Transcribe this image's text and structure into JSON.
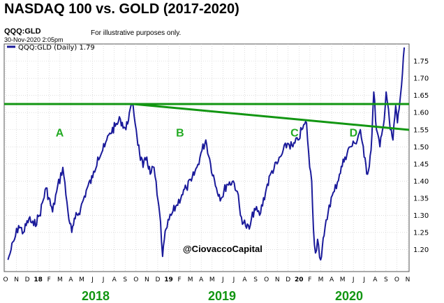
{
  "title": "NASDAQ 100 vs. GOLD (2017-2020)",
  "header": {
    "symbol": "QQQ:GLD",
    "datetime": "30-Nov-2020 2:05pm",
    "disclaimer": "For illustrative purposes only.",
    "legend": "QQQ:GLD (Daily) 1.79"
  },
  "watermark": "@CiovaccoCapital",
  "colors": {
    "series": "#1a1a9a",
    "lines": "#129612",
    "labels": "#22aa22",
    "years": "#129612"
  },
  "chart_data": {
    "type": "line",
    "xlabel": "",
    "ylabel": "",
    "ylim": [
      1.15,
      1.79
    ],
    "x_ticks": [
      "O",
      "N",
      "D",
      "18",
      "F",
      "M",
      "A",
      "M",
      "J",
      "J",
      "A",
      "S",
      "O",
      "N",
      "D",
      "19",
      "F",
      "M",
      "A",
      "M",
      "J",
      "J",
      "A",
      "S",
      "O",
      "N",
      "D",
      "20",
      "F",
      "M",
      "A",
      "M",
      "J",
      "J",
      "A",
      "S",
      "O",
      "N"
    ],
    "y_ticks": [
      "1.75",
      "1.70",
      "1.65",
      "1.60",
      "1.55",
      "1.50",
      "1.45",
      "1.40",
      "1.35",
      "1.30",
      "1.25",
      "1.20"
    ],
    "year_labels": [
      "2018",
      "2019",
      "2020"
    ],
    "series": [
      {
        "values": [
          {
            "x": "2017-10-01",
            "y": 1.17
          },
          {
            "x": "2017-10-10",
            "y": 1.2
          },
          {
            "x": "2017-10-20",
            "y": 1.23
          },
          {
            "x": "2017-11-01",
            "y": 1.27
          },
          {
            "x": "2017-11-15",
            "y": 1.25
          },
          {
            "x": "2017-12-01",
            "y": 1.29
          },
          {
            "x": "2017-12-15",
            "y": 1.27
          },
          {
            "x": "2018-01-01",
            "y": 1.3
          },
          {
            "x": "2018-01-20",
            "y": 1.38
          },
          {
            "x": "2018-02-08",
            "y": 1.31
          },
          {
            "x": "2018-02-20",
            "y": 1.37
          },
          {
            "x": "2018-03-10",
            "y": 1.44
          },
          {
            "x": "2018-03-25",
            "y": 1.31
          },
          {
            "x": "2018-04-05",
            "y": 1.25
          },
          {
            "x": "2018-04-15",
            "y": 1.29
          },
          {
            "x": "2018-05-01",
            "y": 1.32
          },
          {
            "x": "2018-05-20",
            "y": 1.38
          },
          {
            "x": "2018-06-05",
            "y": 1.41
          },
          {
            "x": "2018-06-20",
            "y": 1.47
          },
          {
            "x": "2018-07-10",
            "y": 1.5
          },
          {
            "x": "2018-07-25",
            "y": 1.54
          },
          {
            "x": "2018-08-10",
            "y": 1.56
          },
          {
            "x": "2018-08-25",
            "y": 1.58
          },
          {
            "x": "2018-09-10",
            "y": 1.55
          },
          {
            "x": "2018-09-20",
            "y": 1.6
          },
          {
            "x": "2018-10-01",
            "y": 1.62
          },
          {
            "x": "2018-10-10",
            "y": 1.55
          },
          {
            "x": "2018-10-20",
            "y": 1.48
          },
          {
            "x": "2018-10-30",
            "y": 1.44
          },
          {
            "x": "2018-11-10",
            "y": 1.47
          },
          {
            "x": "2018-11-20",
            "y": 1.42
          },
          {
            "x": "2018-12-01",
            "y": 1.44
          },
          {
            "x": "2018-12-10",
            "y": 1.36
          },
          {
            "x": "2018-12-20",
            "y": 1.28
          },
          {
            "x": "2018-12-26",
            "y": 1.18
          },
          {
            "x": "2019-01-05",
            "y": 1.26
          },
          {
            "x": "2019-01-20",
            "y": 1.3
          },
          {
            "x": "2019-02-05",
            "y": 1.33
          },
          {
            "x": "2019-02-20",
            "y": 1.36
          },
          {
            "x": "2019-03-05",
            "y": 1.38
          },
          {
            "x": "2019-03-20",
            "y": 1.4
          },
          {
            "x": "2019-04-05",
            "y": 1.44
          },
          {
            "x": "2019-04-20",
            "y": 1.49
          },
          {
            "x": "2019-05-01",
            "y": 1.52
          },
          {
            "x": "2019-05-15",
            "y": 1.45
          },
          {
            "x": "2019-06-01",
            "y": 1.38
          },
          {
            "x": "2019-06-15",
            "y": 1.35
          },
          {
            "x": "2019-07-01",
            "y": 1.39
          },
          {
            "x": "2019-07-20",
            "y": 1.4
          },
          {
            "x": "2019-08-01",
            "y": 1.37
          },
          {
            "x": "2019-08-10",
            "y": 1.3
          },
          {
            "x": "2019-08-25",
            "y": 1.27
          },
          {
            "x": "2019-09-05",
            "y": 1.26
          },
          {
            "x": "2019-09-20",
            "y": 1.32
          },
          {
            "x": "2019-10-05",
            "y": 1.3
          },
          {
            "x": "2019-10-25",
            "y": 1.38
          },
          {
            "x": "2019-11-10",
            "y": 1.43
          },
          {
            "x": "2019-11-25",
            "y": 1.45
          },
          {
            "x": "2019-12-10",
            "y": 1.48
          },
          {
            "x": "2019-12-25",
            "y": 1.51
          },
          {
            "x": "2020-01-10",
            "y": 1.5
          },
          {
            "x": "2020-01-25",
            "y": 1.52
          },
          {
            "x": "2020-02-05",
            "y": 1.55
          },
          {
            "x": "2020-02-19",
            "y": 1.57
          },
          {
            "x": "2020-02-28",
            "y": 1.44
          },
          {
            "x": "2020-03-05",
            "y": 1.4
          },
          {
            "x": "2020-03-10",
            "y": 1.26
          },
          {
            "x": "2020-03-16",
            "y": 1.19
          },
          {
            "x": "2020-03-22",
            "y": 1.23
          },
          {
            "x": "2020-03-31",
            "y": 1.17
          },
          {
            "x": "2020-04-10",
            "y": 1.24
          },
          {
            "x": "2020-04-25",
            "y": 1.33
          },
          {
            "x": "2020-05-10",
            "y": 1.37
          },
          {
            "x": "2020-05-25",
            "y": 1.42
          },
          {
            "x": "2020-06-10",
            "y": 1.47
          },
          {
            "x": "2020-06-25",
            "y": 1.5
          },
          {
            "x": "2020-07-10",
            "y": 1.51
          },
          {
            "x": "2020-07-25",
            "y": 1.55
          },
          {
            "x": "2020-08-05",
            "y": 1.47
          },
          {
            "x": "2020-08-15",
            "y": 1.42
          },
          {
            "x": "2020-08-25",
            "y": 1.49
          },
          {
            "x": "2020-09-02",
            "y": 1.66
          },
          {
            "x": "2020-09-10",
            "y": 1.55
          },
          {
            "x": "2020-09-20",
            "y": 1.5
          },
          {
            "x": "2020-09-30",
            "y": 1.56
          },
          {
            "x": "2020-10-08",
            "y": 1.66
          },
          {
            "x": "2020-10-15",
            "y": 1.61
          },
          {
            "x": "2020-10-20",
            "y": 1.55
          },
          {
            "x": "2020-10-28",
            "y": 1.52
          },
          {
            "x": "2020-11-05",
            "y": 1.62
          },
          {
            "x": "2020-11-10",
            "y": 1.57
          },
          {
            "x": "2020-11-15",
            "y": 1.61
          },
          {
            "x": "2020-11-22",
            "y": 1.68
          },
          {
            "x": "2020-11-30",
            "y": 1.79
          }
        ]
      }
    ],
    "annotations": [
      {
        "text": "A",
        "x": "2018-03-01",
        "y": 1.54
      },
      {
        "text": "B",
        "x": "2019-02-15",
        "y": 1.54
      },
      {
        "text": "C",
        "x": "2020-01-15",
        "y": 1.54
      },
      {
        "text": "D",
        "x": "2020-07-05",
        "y": 1.54
      }
    ],
    "lines": [
      {
        "name": "horizontal resistance",
        "y": 1.625
      },
      {
        "name": "declining trendline",
        "from": {
          "x": "2018-10-01",
          "y": 1.625
        },
        "to": {
          "x": "2020-12-31",
          "y": 1.548
        }
      }
    ]
  }
}
